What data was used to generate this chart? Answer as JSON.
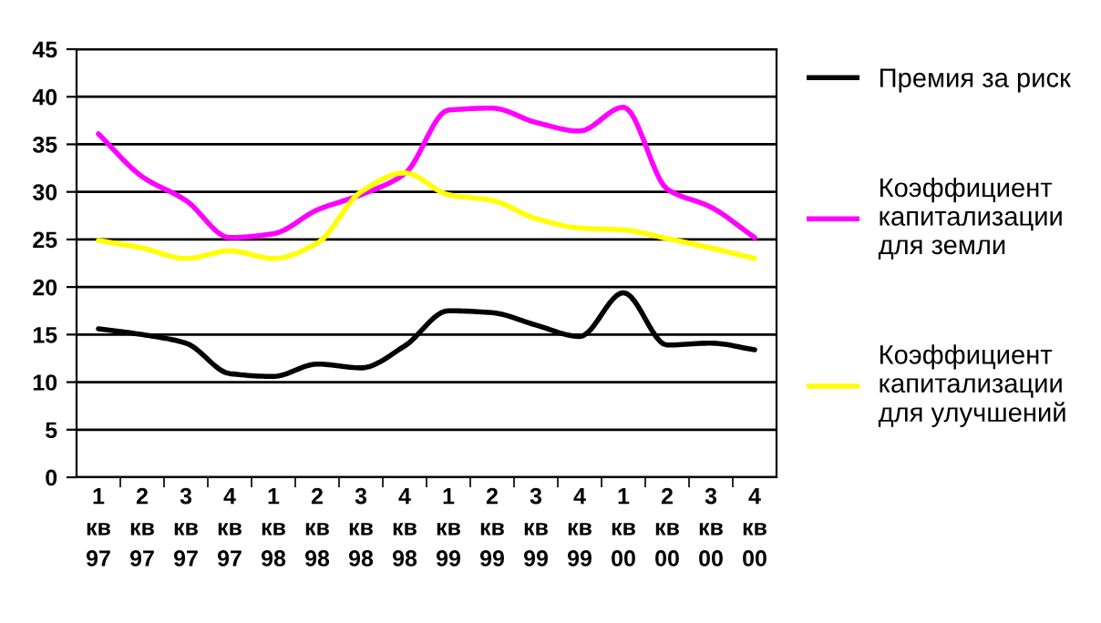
{
  "chart_data": {
    "type": "line",
    "categories": [
      "1\nкв\n97",
      "2\nкв\n97",
      "3\nкв\n97",
      "4\nкв\n97",
      "1\nкв\n98",
      "2\nкв\n98",
      "3\nкв\n98",
      "4\nкв\n98",
      "1\nкв\n99",
      "2\nкв\n99",
      "3\nкв\n99",
      "4\nкв\n99",
      "1\nкв\n00",
      "2\nкв\n00",
      "3\nкв\n00",
      "4\nкв\n00"
    ],
    "series": [
      {
        "name": "Премия за риск",
        "color": "#000000",
        "values": [
          15.6,
          15.0,
          14.1,
          10.9,
          10.6,
          11.9,
          11.5,
          13.8,
          17.5,
          17.3,
          16.0,
          14.8,
          19.4,
          13.9,
          14.1,
          13.4
        ]
      },
      {
        "name": "Коэффициент\nкапитализации\nдля земли",
        "color": "#ff00ff",
        "values": [
          36.1,
          31.6,
          29.1,
          25.2,
          25.6,
          28.1,
          29.7,
          31.9,
          38.6,
          38.8,
          37.3,
          36.4,
          38.9,
          30.3,
          28.4,
          25.2
        ]
      },
      {
        "name": "Коэффициент\nкапитализации\nдля улучшений",
        "color": "#ffff00",
        "values": [
          24.9,
          24.1,
          23.0,
          23.8,
          23.0,
          24.6,
          30.0,
          32.0,
          29.7,
          29.1,
          27.2,
          26.2,
          26.0,
          25.1,
          24.1,
          23.0
        ]
      }
    ],
    "ylim": [
      0,
      45
    ],
    "yticks": [
      0,
      5,
      10,
      15,
      20,
      25,
      30,
      35,
      40,
      45
    ],
    "grid": "y",
    "legend": "right",
    "marker": "none",
    "line_style": "solid"
  }
}
